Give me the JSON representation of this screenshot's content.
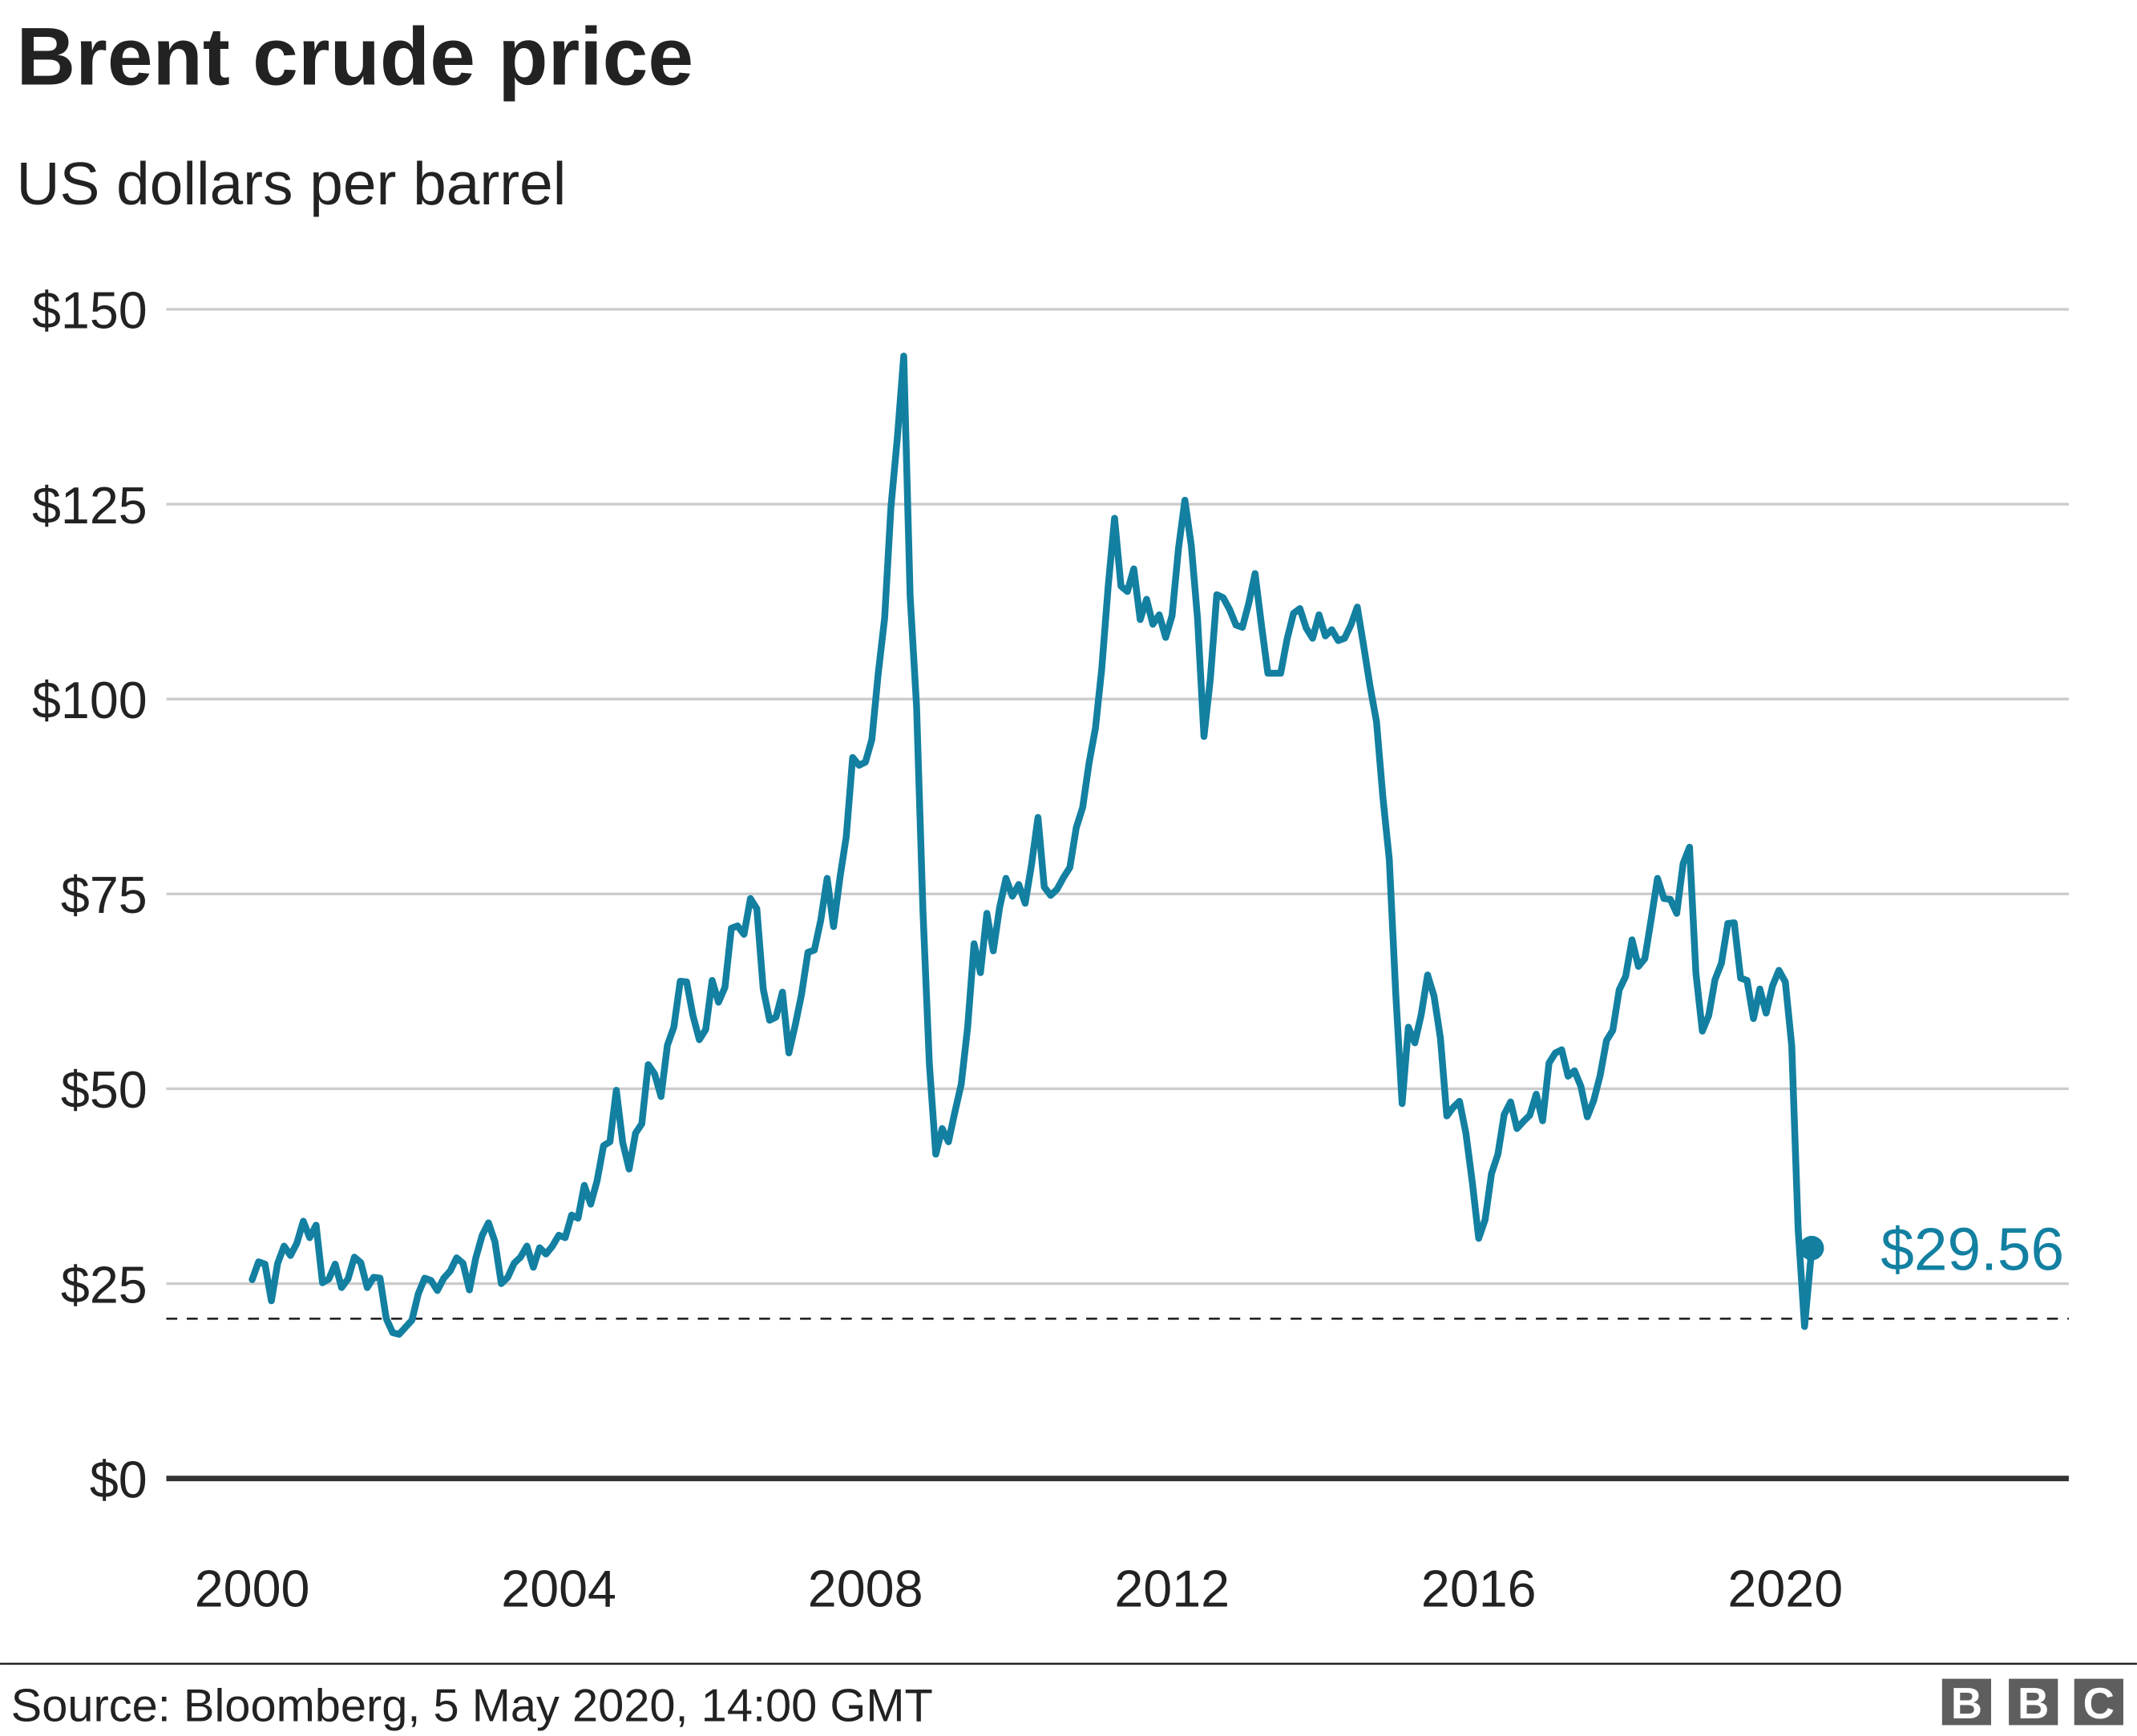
{
  "chart_data": {
    "type": "line",
    "title": "Brent crude price",
    "subtitle": "US dollars per barrel",
    "xlabel": "",
    "ylabel": "",
    "ylim": [
      0,
      150
    ],
    "y_ticks": [
      0,
      25,
      50,
      75,
      100,
      125,
      150
    ],
    "y_tick_labels": [
      "$0",
      "$25",
      "$50",
      "$75",
      "$100",
      "$125",
      "$150"
    ],
    "x_ticks": [
      "2000",
      "2004",
      "2008",
      "2012",
      "2016",
      "2020"
    ],
    "grid": "horizontal",
    "reference_line": 20.5,
    "end_label": "$29.56",
    "series": [
      {
        "color": "#1380a1",
        "start": "2000-01",
        "frequency": "monthly",
        "values": [
          25.5,
          27.8,
          27.5,
          22.8,
          27.6,
          29.8,
          28.6,
          30.2,
          33.0,
          30.9,
          32.5,
          25.1,
          25.6,
          27.5,
          24.5,
          25.6,
          28.4,
          27.7,
          24.5,
          25.8,
          25.7,
          20.5,
          18.7,
          18.5,
          19.4,
          20.3,
          23.7,
          25.7,
          25.4,
          24.1,
          25.7,
          26.6,
          28.3,
          27.6,
          24.2,
          28.3,
          31.2,
          32.8,
          30.4,
          25.0,
          25.8,
          27.6,
          28.4,
          29.8,
          27.1,
          29.6,
          28.8,
          29.8,
          31.2,
          30.9,
          33.8,
          33.4,
          37.6,
          35.2,
          38.2,
          42.7,
          43.2,
          49.8,
          43.1,
          39.7,
          44.3,
          45.5,
          53.1,
          51.9,
          49.0,
          55.6,
          57.9,
          63.8,
          63.7,
          59.4,
          56.3,
          57.6,
          63.9,
          61.1,
          63.0,
          70.6,
          70.9,
          69.8,
          74.4,
          73.1,
          62.8,
          58.8,
          59.2,
          62.4,
          54.6,
          58.1,
          62.1,
          67.5,
          67.8,
          71.6,
          77.0,
          70.8,
          77.1,
          82.3,
          92.5,
          91.5,
          91.9,
          94.8,
          103.3,
          110.4,
          124.6,
          133.5,
          144.0,
          113.2,
          99.1,
          72.8,
          53.2,
          41.6,
          44.9,
          43.2,
          47.0,
          50.6,
          57.9,
          68.6,
          64.9,
          72.5,
          67.7,
          73.2,
          77.0,
          74.7,
          76.2,
          73.8,
          78.8,
          84.8,
          75.9,
          74.8,
          75.6,
          77.1,
          78.4,
          83.5,
          86.1,
          91.8,
          96.3,
          103.9,
          114.4,
          123.2,
          114.5,
          113.8,
          116.7,
          110.2,
          112.8,
          109.6,
          110.8,
          107.9,
          110.7,
          119.3,
          125.5,
          119.7,
          110.3,
          95.2,
          102.6,
          113.4,
          113.0,
          111.5,
          109.5,
          109.2,
          112.3,
          116.1,
          109.5,
          103.3,
          103.3,
          103.3,
          107.7,
          111.0,
          111.6,
          109.1,
          107.8,
          110.8,
          108.1,
          108.9,
          107.5,
          107.8,
          109.5,
          111.8,
          106.8,
          101.6,
          97.1,
          87.4,
          79.4,
          62.3,
          48.1,
          57.9,
          55.9,
          59.5,
          64.6,
          61.9,
          56.5,
          46.5,
          47.6,
          48.4,
          44.3,
          38.0,
          30.8,
          33.2,
          39.1,
          41.6,
          46.7,
          48.3,
          44.9,
          45.8,
          46.6,
          49.3,
          45.9,
          53.3,
          54.6,
          55.0,
          51.6,
          52.3,
          50.3,
          46.4,
          48.5,
          51.7,
          56.2,
          57.5,
          62.7,
          64.4,
          69.1,
          65.7,
          66.7,
          71.8,
          77.0,
          74.4,
          74.3,
          72.5,
          78.9,
          81.0,
          64.8,
          57.4,
          59.4,
          64.0,
          66.1,
          71.2,
          71.3,
          64.2,
          63.9,
          59.0,
          62.8,
          59.7,
          63.2,
          65.2,
          63.7,
          55.5,
          32.0,
          19.5,
          29.56
        ]
      }
    ]
  },
  "footer": {
    "source": "Source: Bloomberg, 5 May 2020, 14:00 GMT",
    "logo": "BBC"
  }
}
